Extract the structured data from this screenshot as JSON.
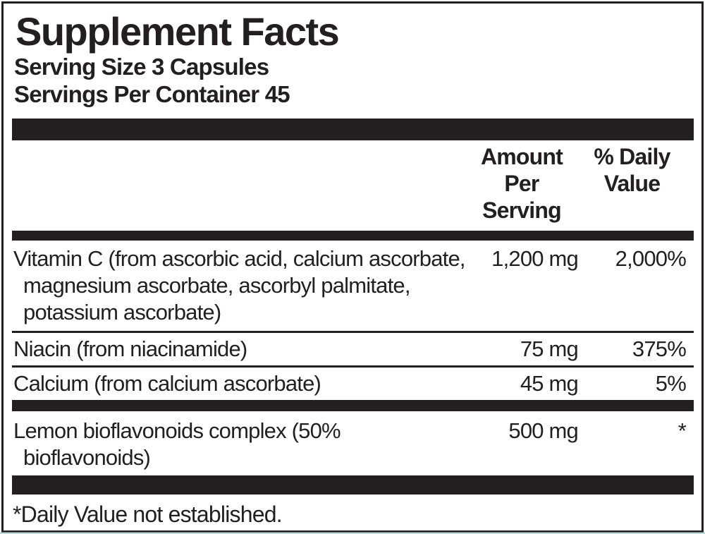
{
  "label": {
    "title": "Supplement Facts",
    "serving_size": "Serving Size 3 Capsules",
    "servings_per_container": "Servings Per Container 45",
    "header": {
      "amount": "Amount Per Serving",
      "daily_value": "% Daily Value"
    },
    "rows": [
      {
        "name": "Vitamin C (from ascorbic acid, calcium ascorbate, magnesium ascorbate, ascorbyl palmitate, potassium ascorbate)",
        "amount": "1,200 mg",
        "daily_value": "2,000%"
      },
      {
        "name": "Niacin (from niacinamide)",
        "amount": "75 mg",
        "daily_value": "375%"
      },
      {
        "name": "Calcium (from calcium ascorbate)",
        "amount": "45 mg",
        "daily_value": "5%"
      },
      {
        "name": "Lemon bioflavonoids complex (50% bioflavonoids)",
        "amount": "500 mg",
        "daily_value": "*"
      }
    ],
    "footnote": "*Daily Value not established.",
    "colors": {
      "ink": "#231f20",
      "background": "#ffffff"
    }
  }
}
